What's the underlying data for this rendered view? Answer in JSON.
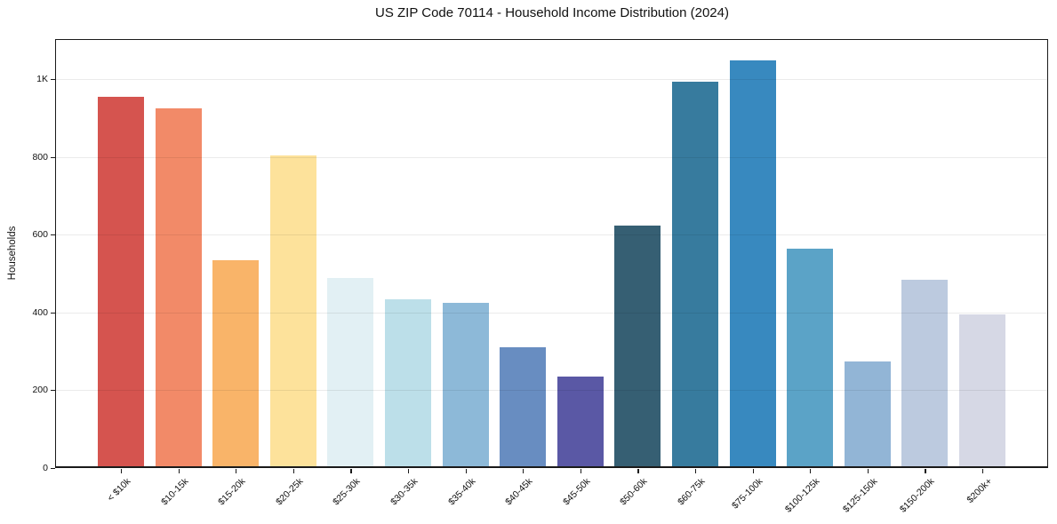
{
  "chart_data": {
    "type": "bar",
    "title": "US ZIP Code 70114 - Household Income Distribution (2024)",
    "xlabel": "",
    "ylabel": "Households",
    "categories": [
      "< $10k",
      "$10-15k",
      "$15-20k",
      "$20-25k",
      "$25-30k",
      "$30-35k",
      "$35-40k",
      "$40-45k",
      "$45-50k",
      "$50-60k",
      "$60-75k",
      "$75-100k",
      "$100-125k",
      "$125-150k",
      "$150-200k",
      "$200k+"
    ],
    "values": [
      955,
      925,
      535,
      805,
      490,
      435,
      425,
      310,
      235,
      625,
      995,
      1050,
      565,
      275,
      485,
      395
    ],
    "bar_colors": [
      "#d5544f",
      "#f28a68",
      "#f9b469",
      "#fde29b",
      "#e2f0f4",
      "#bcdfe9",
      "#8db9d8",
      "#688dc1",
      "#5a58a5",
      "#365f73",
      "#377b9e",
      "#3889bf",
      "#5ba3c7",
      "#92b5d6",
      "#bccadf",
      "#d6d8e5"
    ],
    "ylim": [
      0,
      1104
    ],
    "yticks": [
      {
        "value": 0,
        "label": "0"
      },
      {
        "value": 200,
        "label": "200"
      },
      {
        "value": 400,
        "label": "400"
      },
      {
        "value": 600,
        "label": "600"
      },
      {
        "value": 800,
        "label": "800"
      },
      {
        "value": 1000,
        "label": "1K"
      }
    ],
    "grid": "horizontal",
    "legend": "none"
  },
  "colors": {
    "background": "#ffffff",
    "spine": "#1a1a1a",
    "gridline": "rgba(0,0,0,0.08)",
    "text": "#111111"
  }
}
